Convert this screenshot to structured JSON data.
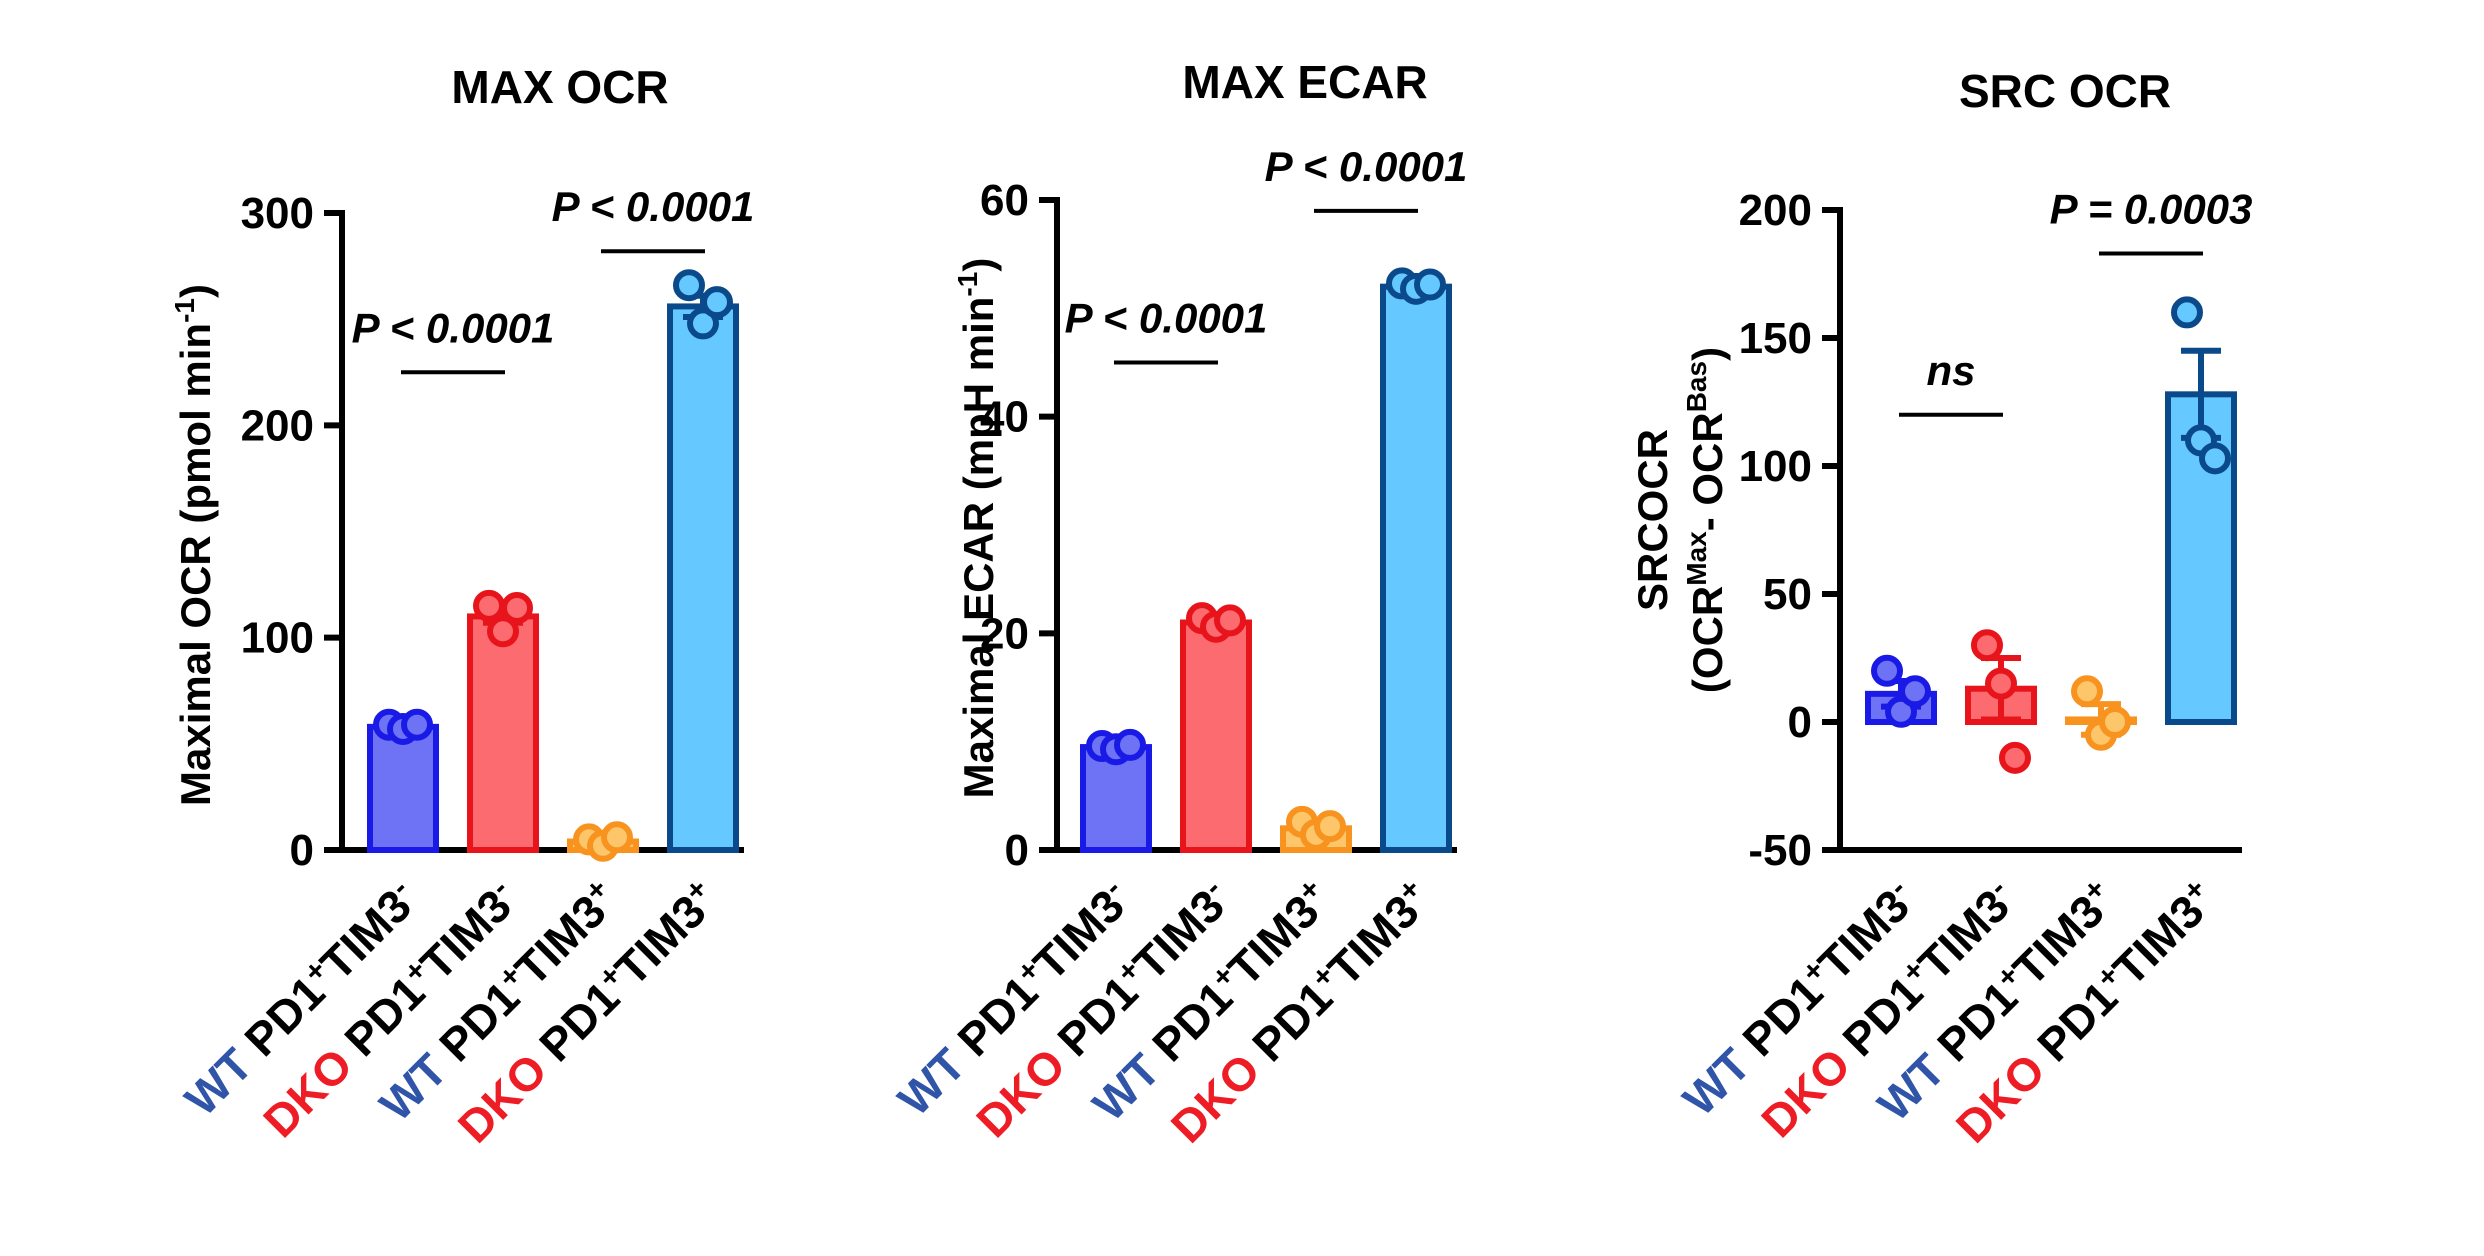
{
  "colors": {
    "wt_label": "#2f54a8",
    "dko_label": "#ee1c24",
    "bars": [
      {
        "fill": "#6e72f5",
        "stroke": "#1a1ae6"
      },
      {
        "fill": "#fb6b70",
        "stroke": "#e8141c"
      },
      {
        "fill": "#fdc66a",
        "stroke": "#f7931e"
      },
      {
        "fill": "#65c8ff",
        "stroke": "#0b4a8a"
      }
    ]
  },
  "chart_data": [
    {
      "type": "bar",
      "title": "MAX OCR",
      "ylabel_main": "Maximal OCR (pmol min",
      "ylabel_sup": "-1",
      "ylabel_end": ")",
      "ylim": [
        0,
        300
      ],
      "yticks": [
        0,
        100,
        200,
        300
      ],
      "categories": [
        {
          "group": "WT",
          "cell": "PD1",
          "s1": "+",
          "tim": "TIM3",
          "s2": "-"
        },
        {
          "group": "DKO",
          "cell": "PD1",
          "s1": "+",
          "tim": "TIM3",
          "s2": "-"
        },
        {
          "group": "WT",
          "cell": "PD1",
          "s1": "+",
          "tim": "TIM3",
          "s2": "+"
        },
        {
          "group": "DKO",
          "cell": "PD1",
          "s1": "+",
          "tim": "TIM3",
          "s2": "+"
        }
      ],
      "values": [
        58,
        110,
        4,
        256
      ],
      "errors": [
        2,
        3,
        1,
        5
      ],
      "points": [
        [
          59,
          57,
          59
        ],
        [
          115,
          103,
          114
        ],
        [
          5,
          2,
          6
        ],
        [
          266,
          248,
          258
        ]
      ],
      "comparisons": [
        {
          "from": 0,
          "to": 1,
          "text": "P < 0.0001",
          "y": 225
        },
        {
          "from": 2,
          "to": 3,
          "text": "P < 0.0001",
          "y": 282
        }
      ]
    },
    {
      "type": "bar",
      "title": "MAX ECAR",
      "ylabel_main": "Maximal ECAR (mpH min",
      "ylabel_sup": "-1",
      "ylabel_end": ")",
      "ylim": [
        0,
        60
      ],
      "yticks": [
        0,
        20,
        40,
        60
      ],
      "categories": [
        {
          "group": "WT",
          "cell": "PD1",
          "s1": "+",
          "tim": "TIM3",
          "s2": "-"
        },
        {
          "group": "DKO",
          "cell": "PD1",
          "s1": "+",
          "tim": "TIM3",
          "s2": "-"
        },
        {
          "group": "WT",
          "cell": "PD1",
          "s1": "+",
          "tim": "TIM3",
          "s2": "+"
        },
        {
          "group": "DKO",
          "cell": "PD1",
          "s1": "+",
          "tim": "TIM3",
          "s2": "+"
        }
      ],
      "values": [
        9.5,
        21,
        2,
        52
      ],
      "errors": [
        0.3,
        0.4,
        0.4,
        0.3
      ],
      "points": [
        [
          9.6,
          9.3,
          9.7
        ],
        [
          21.4,
          20.6,
          21.2
        ],
        [
          2.6,
          1.4,
          2.2
        ],
        [
          52.3,
          51.8,
          52.2
        ]
      ],
      "comparisons": [
        {
          "from": 0,
          "to": 1,
          "text": "P < 0.0001",
          "y": 45
        },
        {
          "from": 2,
          "to": 3,
          "text": "P < 0.0001",
          "y": 59
        }
      ]
    },
    {
      "type": "bar",
      "title": "SRC OCR",
      "ylabel_line1": "SRCOCR",
      "ylabel_line2_a": "(OCR",
      "ylabel_line2_sup1": "Max",
      "ylabel_line2_b": "- OCR",
      "ylabel_line2_sup2": "Bas",
      "ylabel_line2_c": ")",
      "ylim": [
        -50,
        200
      ],
      "yticks": [
        -50,
        0,
        50,
        100,
        150,
        200
      ],
      "categories": [
        {
          "group": "WT",
          "cell": "PD1",
          "s1": "+",
          "tim": "TIM3",
          "s2": "-"
        },
        {
          "group": "DKO",
          "cell": "PD1",
          "s1": "+",
          "tim": "TIM3",
          "s2": "-"
        },
        {
          "group": "WT",
          "cell": "PD1",
          "s1": "+",
          "tim": "TIM3",
          "s2": "+"
        },
        {
          "group": "DKO",
          "cell": "PD1",
          "s1": "+",
          "tim": "TIM3",
          "s2": "+"
        }
      ],
      "values": [
        11,
        13,
        1,
        128
      ],
      "errors": [
        5,
        12,
        6,
        17
      ],
      "points": [
        [
          20,
          4,
          12
        ],
        [
          30,
          15,
          -14
        ],
        [
          12,
          -5,
          0
        ],
        [
          160,
          110,
          103
        ]
      ],
      "comparisons": [
        {
          "from": 0,
          "to": 1,
          "text": "ns",
          "y": 120
        },
        {
          "from": 2,
          "to": 3,
          "text": "P = 0.0003",
          "y": 183
        }
      ]
    }
  ]
}
